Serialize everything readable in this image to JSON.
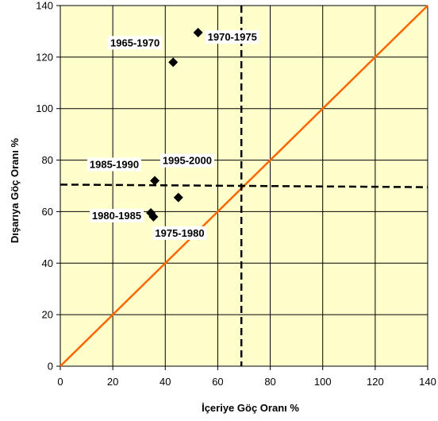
{
  "chart_data": {
    "type": "scatter",
    "title": "",
    "xlabel": "İçeriye Göç Oranı  %",
    "ylabel": "Dışarıya Göç Oranı  %",
    "xlim": [
      0,
      140
    ],
    "ylim": [
      0,
      140
    ],
    "x_ticks": [
      0,
      20,
      40,
      60,
      80,
      100,
      120,
      140
    ],
    "y_ticks": [
      0,
      20,
      40,
      60,
      80,
      100,
      120,
      140
    ],
    "grid": true,
    "legend": "none",
    "plot_background": "#FFFFCC",
    "marker_color": "#000000",
    "diagonal_color": "#FF6600",
    "points": [
      {
        "label": "1965-1970",
        "x": 43,
        "y": 118
      },
      {
        "label": "1970-1975",
        "x": 52.5,
        "y": 129.5
      },
      {
        "label": "1975-1980",
        "x": 35.5,
        "y": 58
      },
      {
        "label": "1980-1985",
        "x": 34.5,
        "y": 59.5
      },
      {
        "label": "1985-1990",
        "x": 36,
        "y": 72
      },
      {
        "label": "1995-2000",
        "x": 45,
        "y": 65.5
      }
    ],
    "reference_lines": {
      "diagonal": {
        "from": [
          0,
          0
        ],
        "to": [
          140,
          140
        ]
      },
      "vertical_dashed_x": 69,
      "horizontal_dashed_y": [
        70.5,
        69.5
      ]
    }
  }
}
